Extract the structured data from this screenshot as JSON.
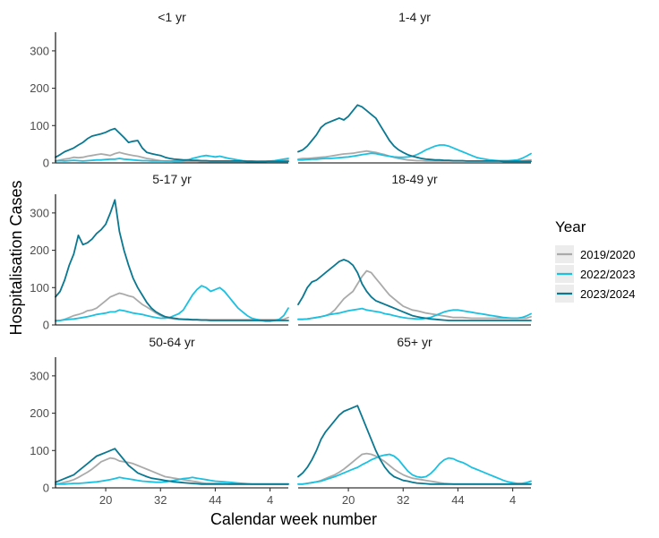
{
  "chart_data": {
    "type": "line",
    "layout": "facet-grid",
    "xlabel": "Calendar week number",
    "ylabel": "Hospitalisation Cases",
    "ylim": [
      0,
      350
    ],
    "y_ticks": [
      0,
      100,
      200,
      300
    ],
    "x_tick_labels": [
      "20",
      "32",
      "44",
      "4"
    ],
    "grid": false,
    "legend": {
      "title": "Year",
      "position": "right",
      "entries": [
        "2019/2020",
        "2022/2023",
        "2023/2024"
      ]
    },
    "colors": {
      "2019/2020": "#aaaaaa",
      "2022/2023": "#1cc0e0",
      "2023/2024": "#0a7891"
    },
    "x_unit": "week index 0-51 (week 9 through week 8 of following year)",
    "facets": [
      {
        "title": "<1 yr",
        "series": [
          {
            "name": "2019/2020",
            "values": [
              5,
              8,
              10,
              12,
              15,
              14,
              15,
              18,
              20,
              22,
              24,
              22,
              20,
              25,
              28,
              25,
              22,
              20,
              18,
              15,
              12,
              10,
              8,
              6,
              5,
              5,
              4,
              4,
              4,
              4,
              4,
              4,
              3,
              3,
              3,
              3,
              3,
              3,
              3,
              3,
              3,
              3,
              3,
              3,
              3,
              4,
              4,
              5,
              5,
              6,
              6,
              7
            ]
          },
          {
            "name": "2022/2023",
            "values": [
              5,
              6,
              5,
              6,
              7,
              6,
              5,
              6,
              7,
              8,
              8,
              9,
              10,
              10,
              12,
              10,
              9,
              8,
              7,
              6,
              6,
              5,
              5,
              5,
              5,
              5,
              5,
              5,
              6,
              8,
              12,
              15,
              18,
              20,
              18,
              16,
              18,
              15,
              12,
              10,
              8,
              6,
              5,
              5,
              4,
              4,
              4,
              5,
              6,
              8,
              10,
              12
            ]
          },
          {
            "name": "2023/2024",
            "values": [
              15,
              22,
              30,
              35,
              40,
              48,
              55,
              65,
              72,
              75,
              78,
              82,
              88,
              92,
              80,
              68,
              55,
              58,
              60,
              40,
              28,
              25,
              22,
              20,
              15,
              12,
              10,
              9,
              8,
              8,
              7,
              7,
              6,
              6,
              5,
              5,
              5,
              5,
              5,
              5,
              5,
              5,
              4,
              4,
              4,
              4,
              4,
              4,
              4,
              4,
              4,
              4
            ]
          }
        ]
      },
      {
        "title": "1-4 yr",
        "series": [
          {
            "name": "2019/2020",
            "values": [
              10,
              12,
              12,
              13,
              14,
              15,
              16,
              18,
              20,
              22,
              24,
              25,
              26,
              28,
              30,
              32,
              30,
              28,
              25,
              22,
              18,
              15,
              12,
              10,
              8,
              7,
              6,
              6,
              5,
              5,
              5,
              5,
              5,
              5,
              5,
              5,
              5,
              5,
              5,
              5,
              5,
              5,
              5,
              5,
              5,
              5,
              5,
              5,
              5,
              6,
              7,
              8
            ]
          },
          {
            "name": "2022/2023",
            "values": [
              8,
              8,
              9,
              10,
              10,
              11,
              12,
              12,
              13,
              14,
              15,
              16,
              18,
              20,
              22,
              24,
              26,
              25,
              22,
              20,
              18,
              16,
              15,
              15,
              16,
              18,
              22,
              28,
              35,
              40,
              45,
              48,
              48,
              45,
              40,
              35,
              30,
              25,
              20,
              15,
              12,
              10,
              8,
              7,
              6,
              6,
              6,
              7,
              8,
              12,
              18,
              25
            ]
          },
          {
            "name": "2023/2024",
            "values": [
              30,
              35,
              45,
              60,
              75,
              95,
              105,
              110,
              115,
              120,
              115,
              125,
              140,
              155,
              150,
              140,
              130,
              120,
              100,
              80,
              60,
              45,
              35,
              28,
              22,
              18,
              15,
              12,
              10,
              9,
              8,
              8,
              7,
              7,
              6,
              6,
              6,
              5,
              5,
              5,
              5,
              5,
              5,
              5,
              5,
              4,
              4,
              4,
              4,
              4,
              4,
              4
            ]
          }
        ]
      },
      {
        "title": "5-17 yr",
        "series": [
          {
            "name": "2019/2020",
            "values": [
              10,
              12,
              15,
              20,
              25,
              28,
              32,
              38,
              40,
              45,
              55,
              65,
              75,
              80,
              85,
              82,
              78,
              75,
              65,
              55,
              48,
              40,
              32,
              25,
              20,
              18,
              16,
              15,
              15,
              14,
              14,
              14,
              14,
              14,
              14,
              14,
              14,
              14,
              14,
              14,
              14,
              14,
              14,
              14,
              14,
              14,
              14,
              14,
              14,
              14,
              15,
              20
            ]
          },
          {
            "name": "2022/2023",
            "values": [
              12,
              12,
              14,
              15,
              16,
              18,
              20,
              22,
              25,
              28,
              30,
              32,
              35,
              35,
              40,
              38,
              35,
              32,
              30,
              28,
              25,
              22,
              20,
              18,
              18,
              20,
              25,
              30,
              40,
              60,
              80,
              95,
              105,
              100,
              90,
              95,
              100,
              90,
              75,
              60,
              45,
              35,
              25,
              18,
              15,
              12,
              10,
              10,
              12,
              15,
              25,
              45
            ]
          },
          {
            "name": "2023/2024",
            "values": [
              75,
              90,
              120,
              160,
              190,
              240,
              215,
              220,
              230,
              245,
              255,
              270,
              300,
              335,
              250,
              200,
              160,
              125,
              100,
              80,
              60,
              45,
              35,
              28,
              22,
              20,
              18,
              16,
              15,
              15,
              14,
              14,
              13,
              13,
              12,
              12,
              12,
              12,
              12,
              12,
              12,
              12,
              12,
              12,
              12,
              12,
              12,
              12,
              12,
              12,
              12,
              12
            ]
          }
        ]
      },
      {
        "title": "18-49 yr",
        "series": [
          {
            "name": "2019/2020",
            "values": [
              15,
              15,
              16,
              18,
              20,
              22,
              25,
              30,
              40,
              55,
              70,
              80,
              90,
              110,
              130,
              145,
              140,
              125,
              110,
              95,
              80,
              70,
              60,
              50,
              45,
              40,
              38,
              35,
              32,
              30,
              28,
              26,
              24,
              22,
              20,
              20,
              20,
              19,
              18,
              18,
              18,
              18,
              18,
              18,
              18,
              18,
              18,
              18,
              18,
              18,
              18,
              22
            ]
          },
          {
            "name": "2022/2023",
            "values": [
              15,
              15,
              16,
              18,
              20,
              22,
              25,
              28,
              30,
              32,
              35,
              38,
              40,
              42,
              44,
              40,
              38,
              36,
              34,
              30,
              28,
              25,
              22,
              20,
              18,
              17,
              16,
              16,
              18,
              20,
              25,
              30,
              35,
              38,
              40,
              40,
              38,
              36,
              34,
              32,
              30,
              28,
              26,
              24,
              22,
              20,
              19,
              18,
              18,
              20,
              24,
              30
            ]
          },
          {
            "name": "2023/2024",
            "values": [
              55,
              75,
              100,
              115,
              120,
              130,
              140,
              150,
              160,
              170,
              175,
              170,
              160,
              140,
              110,
              90,
              75,
              65,
              60,
              55,
              50,
              45,
              40,
              35,
              30,
              25,
              22,
              20,
              18,
              16,
              15,
              14,
              13,
              12,
              12,
              12,
              12,
              12,
              12,
              12,
              12,
              12,
              12,
              12,
              12,
              12,
              12,
              12,
              12,
              12,
              12,
              12
            ]
          }
        ]
      },
      {
        "title": "50-64 yr",
        "series": [
          {
            "name": "2019/2020",
            "values": [
              10,
              12,
              15,
              18,
              22,
              28,
              35,
              42,
              50,
              60,
              70,
              75,
              80,
              78,
              72,
              70,
              68,
              65,
              60,
              55,
              50,
              45,
              40,
              35,
              30,
              28,
              26,
              24,
              22,
              20,
              18,
              16,
              14,
              12,
              12,
              12,
              12,
              11,
              10,
              10,
              10,
              10,
              10,
              10,
              10,
              10,
              10,
              10,
              10,
              10,
              10,
              10
            ]
          },
          {
            "name": "2022/2023",
            "values": [
              10,
              10,
              10,
              11,
              12,
              12,
              13,
              14,
              15,
              16,
              18,
              20,
              22,
              25,
              28,
              26,
              24,
              22,
              20,
              18,
              17,
              16,
              15,
              15,
              16,
              18,
              20,
              22,
              25,
              26,
              28,
              26,
              24,
              22,
              20,
              18,
              17,
              16,
              15,
              14,
              13,
              12,
              11,
              10,
              10,
              10,
              10,
              10,
              10,
              10,
              10,
              10
            ]
          },
          {
            "name": "2023/2024",
            "values": [
              15,
              20,
              25,
              30,
              35,
              45,
              55,
              65,
              75,
              85,
              90,
              95,
              100,
              105,
              90,
              75,
              60,
              50,
              40,
              35,
              30,
              26,
              24,
              22,
              20,
              18,
              16,
              15,
              14,
              13,
              12,
              11,
              10,
              10,
              10,
              10,
              10,
              10,
              10,
              10,
              10,
              10,
              10,
              10,
              10,
              10,
              10,
              10,
              10,
              10,
              10,
              10
            ]
          }
        ]
      },
      {
        "title": "65+ yr",
        "series": [
          {
            "name": "2019/2020",
            "values": [
              10,
              10,
              12,
              14,
              16,
              20,
              25,
              30,
              35,
              42,
              50,
              60,
              70,
              80,
              90,
              92,
              90,
              85,
              78,
              70,
              60,
              50,
              42,
              35,
              30,
              26,
              24,
              22,
              20,
              18,
              16,
              14,
              12,
              11,
              10,
              10,
              10,
              10,
              10,
              10,
              10,
              10,
              10,
              10,
              10,
              10,
              10,
              10,
              10,
              10,
              10,
              10
            ]
          },
          {
            "name": "2022/2023",
            "values": [
              10,
              10,
              12,
              14,
              16,
              18,
              22,
              26,
              30,
              35,
              40,
              45,
              50,
              55,
              62,
              68,
              75,
              80,
              85,
              88,
              90,
              85,
              75,
              60,
              45,
              35,
              30,
              28,
              30,
              38,
              50,
              65,
              75,
              80,
              78,
              72,
              68,
              62,
              55,
              50,
              45,
              40,
              35,
              30,
              25,
              20,
              16,
              14,
              12,
              12,
              14,
              18
            ]
          },
          {
            "name": "2023/2024",
            "values": [
              30,
              40,
              55,
              75,
              100,
              130,
              150,
              165,
              180,
              195,
              205,
              210,
              215,
              220,
              190,
              160,
              130,
              100,
              75,
              55,
              40,
              30,
              25,
              20,
              18,
              15,
              13,
              12,
              11,
              10,
              10,
              10,
              10,
              10,
              10,
              10,
              10,
              10,
              10,
              10,
              10,
              10,
              10,
              10,
              10,
              10,
              10,
              10,
              10,
              10,
              10,
              10
            ]
          }
        ]
      }
    ]
  }
}
